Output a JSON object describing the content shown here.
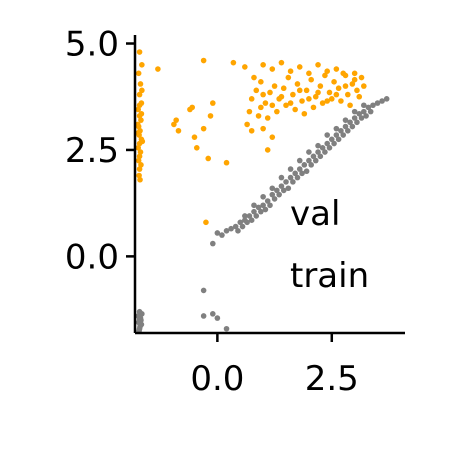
{
  "chart_data": {
    "type": "scatter",
    "title": "",
    "xlabel": "",
    "ylabel": "",
    "xlim": [
      -1.8,
      4.1
    ],
    "ylim": [
      -1.8,
      5.2
    ],
    "xticks": [
      {
        "value": 0.0,
        "label": "0.0"
      },
      {
        "value": 2.5,
        "label": "2.5"
      }
    ],
    "yticks": [
      {
        "value": 0.0,
        "label": "0.0"
      },
      {
        "value": 2.5,
        "label": "2.5"
      },
      {
        "value": 5.0,
        "label": "5.0"
      }
    ],
    "grid": false,
    "legend": {
      "placement": "lower-right",
      "entries": [
        "val",
        "train"
      ]
    },
    "series": [
      {
        "name": "val",
        "color": "#FFA500",
        "points": [
          [
            -1.7,
            4.8
          ],
          [
            -1.65,
            4.5
          ],
          [
            -1.72,
            4.3
          ],
          [
            -1.68,
            4.05
          ],
          [
            -1.7,
            3.8
          ],
          [
            -1.66,
            3.6
          ],
          [
            -1.73,
            3.45
          ],
          [
            -1.7,
            3.3
          ],
          [
            -1.67,
            3.2
          ],
          [
            -1.72,
            3.05
          ],
          [
            -1.69,
            2.95
          ],
          [
            -1.71,
            2.85
          ],
          [
            -1.66,
            2.75
          ],
          [
            -1.7,
            2.65
          ],
          [
            -1.73,
            2.55
          ],
          [
            -1.68,
            2.45
          ],
          [
            -1.7,
            2.35
          ],
          [
            -1.72,
            2.25
          ],
          [
            -1.67,
            2.15
          ],
          [
            -1.7,
            2.05
          ],
          [
            -1.71,
            1.9
          ],
          [
            -1.69,
            1.8
          ],
          [
            -1.65,
            3.9
          ],
          [
            -1.74,
            3.1
          ],
          [
            -1.64,
            2.7
          ],
          [
            -1.7,
            3.55
          ],
          [
            -1.66,
            3.35
          ],
          [
            -1.73,
            2.9
          ],
          [
            -1.3,
            4.4
          ],
          [
            -0.95,
            3.1
          ],
          [
            -0.85,
            2.95
          ],
          [
            -0.9,
            3.2
          ],
          [
            -0.6,
            3.45
          ],
          [
            -0.55,
            3.5
          ],
          [
            -0.5,
            2.8
          ],
          [
            -0.45,
            2.55
          ],
          [
            -0.3,
            3.0
          ],
          [
            -0.2,
            2.3
          ],
          [
            -0.15,
            3.3
          ],
          [
            -0.1,
            3.6
          ],
          [
            -0.3,
            4.6
          ],
          [
            -0.25,
            0.8
          ],
          [
            0.2,
            2.2
          ],
          [
            0.35,
            4.55
          ],
          [
            0.6,
            4.45
          ],
          [
            0.8,
            4.2
          ],
          [
            1.1,
            2.5
          ],
          [
            0.9,
            3.3
          ],
          [
            1.0,
            3.0
          ],
          [
            1.2,
            2.8
          ],
          [
            0.7,
            3.4
          ],
          [
            0.75,
            3.7
          ],
          [
            0.85,
            3.9
          ],
          [
            0.95,
            4.1
          ],
          [
            1.05,
            3.6
          ],
          [
            1.15,
            3.85
          ],
          [
            1.25,
            4.0
          ],
          [
            1.35,
            3.7
          ],
          [
            1.45,
            3.95
          ],
          [
            1.55,
            4.2
          ],
          [
            1.65,
            3.8
          ],
          [
            1.75,
            4.05
          ],
          [
            1.85,
            3.65
          ],
          [
            1.95,
            3.9
          ],
          [
            2.05,
            4.15
          ],
          [
            2.15,
            3.75
          ],
          [
            2.25,
            4.0
          ],
          [
            2.35,
            4.25
          ],
          [
            2.45,
            3.85
          ],
          [
            2.55,
            4.1
          ],
          [
            2.65,
            3.95
          ],
          [
            2.75,
            4.3
          ],
          [
            2.85,
            3.8
          ],
          [
            2.95,
            4.05
          ],
          [
            3.05,
            3.9
          ],
          [
            3.15,
            4.2
          ],
          [
            1.0,
            4.5
          ],
          [
            1.2,
            4.4
          ],
          [
            1.4,
            4.55
          ],
          [
            1.6,
            4.35
          ],
          [
            1.8,
            4.45
          ],
          [
            2.0,
            4.3
          ],
          [
            2.2,
            4.5
          ],
          [
            2.4,
            4.35
          ],
          [
            2.6,
            4.4
          ],
          [
            2.8,
            4.25
          ],
          [
            3.0,
            4.3
          ],
          [
            0.65,
            3.1
          ],
          [
            0.75,
            2.95
          ],
          [
            0.95,
            3.5
          ],
          [
            1.1,
            3.25
          ],
          [
            1.3,
            3.4
          ],
          [
            1.5,
            3.55
          ],
          [
            1.7,
            3.45
          ],
          [
            1.9,
            3.35
          ],
          [
            2.1,
            3.5
          ],
          [
            2.3,
            3.6
          ],
          [
            2.5,
            3.7
          ],
          [
            2.7,
            3.65
          ],
          [
            2.9,
            3.55
          ],
          [
            3.1,
            3.75
          ],
          [
            3.2,
            4.0
          ],
          [
            1.0,
            3.8
          ],
          [
            1.2,
            3.55
          ],
          [
            1.4,
            3.75
          ],
          [
            1.6,
            3.6
          ],
          [
            1.8,
            3.9
          ],
          [
            2.0,
            3.7
          ],
          [
            2.2,
            3.85
          ],
          [
            2.4,
            3.65
          ],
          [
            2.6,
            3.8
          ],
          [
            2.8,
            4.0
          ],
          [
            3.0,
            4.15
          ]
        ]
      },
      {
        "name": "train",
        "color": "#808080",
        "points": [
          [
            -1.7,
            -1.3
          ],
          [
            -1.68,
            -1.45
          ],
          [
            -1.72,
            -1.55
          ],
          [
            -1.66,
            -1.6
          ],
          [
            -1.7,
            -1.7
          ],
          [
            -1.67,
            -1.5
          ],
          [
            -1.73,
            -1.4
          ],
          [
            -1.69,
            -1.65
          ],
          [
            -1.65,
            -1.35
          ],
          [
            -1.71,
            -1.75
          ],
          [
            -1.68,
            -1.58
          ],
          [
            -1.7,
            -1.48
          ],
          [
            -0.3,
            -0.8
          ],
          [
            -0.3,
            -1.4
          ],
          [
            -0.1,
            -1.35
          ],
          [
            0.0,
            -1.45
          ],
          [
            0.2,
            -1.7
          ],
          [
            -0.1,
            0.3
          ],
          [
            0.0,
            0.55
          ],
          [
            0.1,
            0.5
          ],
          [
            0.2,
            0.6
          ],
          [
            0.3,
            0.65
          ],
          [
            0.4,
            0.7
          ],
          [
            0.5,
            0.8
          ],
          [
            0.6,
            0.85
          ],
          [
            0.7,
            0.95
          ],
          [
            0.8,
            1.05
          ],
          [
            0.9,
            1.15
          ],
          [
            1.0,
            1.2
          ],
          [
            1.1,
            1.3
          ],
          [
            1.2,
            1.45
          ],
          [
            1.3,
            1.55
          ],
          [
            1.4,
            1.65
          ],
          [
            1.5,
            1.75
          ],
          [
            1.6,
            1.85
          ],
          [
            1.7,
            1.95
          ],
          [
            1.8,
            2.05
          ],
          [
            1.9,
            2.15
          ],
          [
            2.0,
            2.25
          ],
          [
            2.1,
            2.35
          ],
          [
            2.2,
            2.45
          ],
          [
            2.3,
            2.55
          ],
          [
            2.4,
            2.65
          ],
          [
            2.5,
            2.75
          ],
          [
            2.6,
            2.85
          ],
          [
            2.7,
            2.95
          ],
          [
            2.8,
            3.05
          ],
          [
            2.9,
            3.15
          ],
          [
            3.0,
            3.25
          ],
          [
            3.1,
            3.35
          ],
          [
            3.2,
            3.4
          ],
          [
            3.3,
            3.5
          ],
          [
            3.4,
            3.55
          ],
          [
            3.5,
            3.6
          ],
          [
            3.6,
            3.65
          ],
          [
            3.7,
            3.7
          ],
          [
            0.45,
            0.6
          ],
          [
            0.55,
            0.7
          ],
          [
            0.65,
            0.8
          ],
          [
            0.75,
            0.85
          ],
          [
            0.85,
            0.95
          ],
          [
            0.95,
            1.05
          ],
          [
            1.05,
            1.1
          ],
          [
            1.15,
            1.2
          ],
          [
            1.25,
            1.35
          ],
          [
            1.35,
            1.45
          ],
          [
            1.45,
            1.55
          ],
          [
            1.55,
            1.6
          ],
          [
            1.65,
            1.75
          ],
          [
            1.75,
            1.85
          ],
          [
            1.85,
            1.95
          ],
          [
            1.95,
            2.0
          ],
          [
            2.05,
            2.15
          ],
          [
            2.15,
            2.25
          ],
          [
            2.25,
            2.35
          ],
          [
            2.35,
            2.45
          ],
          [
            2.45,
            2.55
          ],
          [
            2.55,
            2.65
          ],
          [
            2.65,
            2.75
          ],
          [
            2.75,
            2.85
          ],
          [
            2.85,
            2.95
          ],
          [
            2.95,
            3.05
          ],
          [
            3.05,
            3.15
          ],
          [
            3.15,
            3.25
          ],
          [
            3.25,
            3.3
          ],
          [
            3.35,
            3.4
          ],
          [
            0.6,
            0.95
          ],
          [
            0.8,
            1.2
          ],
          [
            1.0,
            1.4
          ],
          [
            1.2,
            1.6
          ],
          [
            1.4,
            1.85
          ],
          [
            1.6,
            2.05
          ],
          [
            1.8,
            2.25
          ],
          [
            2.0,
            2.45
          ],
          [
            2.2,
            2.6
          ],
          [
            2.4,
            2.85
          ],
          [
            2.6,
            3.0
          ],
          [
            2.8,
            3.2
          ],
          [
            3.0,
            3.4
          ],
          [
            3.2,
            3.55
          ]
        ]
      }
    ]
  }
}
